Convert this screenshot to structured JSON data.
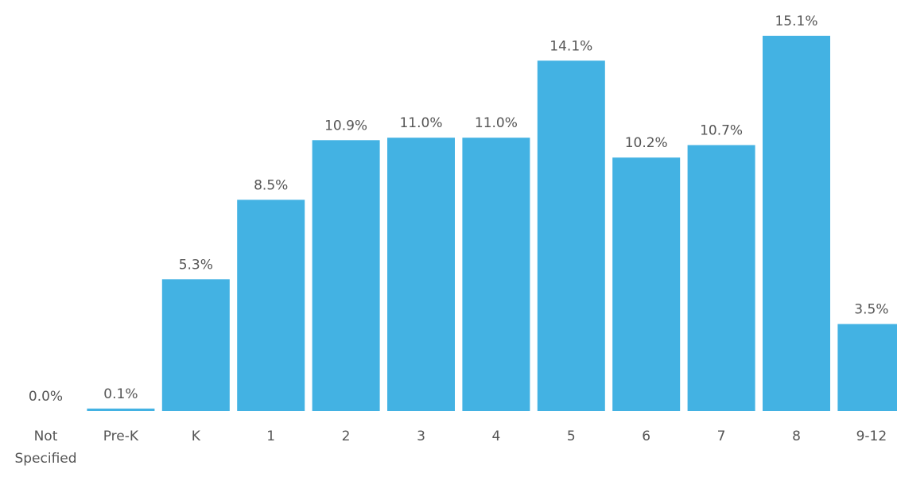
{
  "chart_data": {
    "type": "bar",
    "title": "",
    "xlabel": "",
    "ylabel": "",
    "categories": [
      [
        "Not",
        "Specified"
      ],
      [
        "Pre-K"
      ],
      [
        "K"
      ],
      [
        "1"
      ],
      [
        "2"
      ],
      [
        "3"
      ],
      [
        "4"
      ],
      [
        "5"
      ],
      [
        "6"
      ],
      [
        "7"
      ],
      [
        "8"
      ],
      [
        "9-12"
      ]
    ],
    "values": [
      0.0,
      0.1,
      5.3,
      8.5,
      10.9,
      11.0,
      11.0,
      14.1,
      10.2,
      10.7,
      15.1,
      3.5
    ],
    "value_labels": [
      "0.0%",
      "0.1%",
      "5.3%",
      "8.5%",
      "10.9%",
      "11.0%",
      "11.0%",
      "14.1%",
      "10.2%",
      "10.7%",
      "15.1%",
      "3.5%"
    ],
    "ylim": [
      0,
      15.1
    ],
    "grid": false,
    "colors": {
      "bar": "#43b2e3",
      "text": "#555555"
    }
  }
}
